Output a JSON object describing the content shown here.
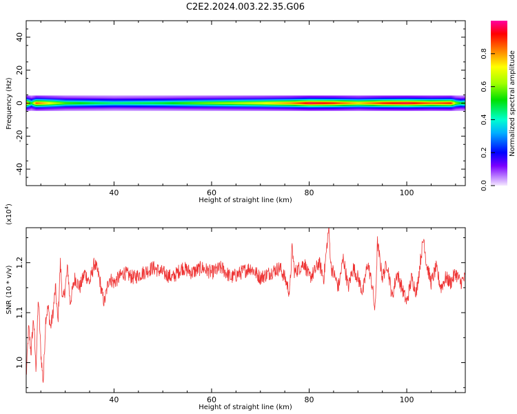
{
  "title": "C2E2.2024.003.22.35.G06",
  "chart_data": [
    {
      "type": "heatmap",
      "xlabel": "Height of straight line (km)",
      "ylabel": "Frequency (Hz)",
      "xlim": [
        22,
        112
      ],
      "ylim": [
        -50,
        50
      ],
      "x_ticks": [
        40,
        60,
        80,
        100
      ],
      "y_ticks": [
        -40,
        -20,
        0,
        20,
        40
      ],
      "colorbar": {
        "label": "Normalized spectral amplitude",
        "range": [
          0,
          1
        ],
        "ticks": [
          "0.0",
          "0.2",
          "0.4",
          "0.6",
          "0.8"
        ]
      },
      "ridge": {
        "center_hz": 0,
        "x": [
          22,
          23,
          24,
          30,
          40,
          50,
          60,
          70,
          76,
          80,
          85,
          90,
          95,
          100,
          105,
          109,
          110,
          111,
          112
        ],
        "amplitude": [
          0.85,
          0.5,
          0.85,
          0.55,
          0.45,
          0.5,
          0.6,
          0.7,
          0.8,
          0.95,
          0.9,
          0.75,
          0.9,
          0.95,
          0.85,
          0.9,
          0.6,
          0.5,
          0.55
        ]
      }
    },
    {
      "type": "line",
      "xlabel": "Height of straight line (km)",
      "ylabel": "SNR (10 * v/v)",
      "y_scale_label": "(x10",
      "y_scale_exp": "4",
      "xlim": [
        22,
        112
      ],
      "ylim": [
        0.94,
        1.27
      ],
      "x_ticks": [
        40,
        60,
        80,
        100
      ],
      "y_ticks": [
        "1.0",
        "1.1",
        "1.2"
      ],
      "color": "#ee3333",
      "series": [
        {
          "x": [
            22,
            22.5,
            23,
            23.5,
            24,
            24.5,
            25,
            25.5,
            26,
            26.5,
            27,
            27.5,
            28,
            28.5,
            29,
            29.5,
            30,
            30.5,
            31,
            32,
            33,
            34,
            35,
            36,
            37,
            37.5,
            38,
            39,
            40,
            42,
            44,
            46,
            48,
            50,
            52,
            54,
            56,
            58,
            60,
            62,
            64,
            66,
            68,
            70,
            72,
            74,
            75,
            76,
            76.5,
            77,
            78,
            79,
            80,
            81,
            82,
            83,
            84,
            84.5,
            85,
            86,
            87,
            88,
            89,
            90,
            91,
            92,
            93,
            93.5,
            94,
            95,
            96,
            97,
            98,
            99,
            100,
            101,
            102,
            103,
            103.5,
            104,
            105,
            106,
            107,
            108,
            109,
            110,
            111,
            112
          ],
          "values": [
            0.97,
            1.07,
            1.02,
            1.09,
            0.99,
            1.13,
            1.02,
            0.96,
            1.09,
            1.11,
            1.07,
            1.1,
            1.15,
            1.08,
            1.2,
            1.12,
            1.15,
            1.19,
            1.12,
            1.17,
            1.15,
            1.18,
            1.16,
            1.2,
            1.17,
            1.14,
            1.12,
            1.17,
            1.16,
            1.18,
            1.17,
            1.18,
            1.19,
            1.18,
            1.17,
            1.19,
            1.18,
            1.19,
            1.18,
            1.19,
            1.17,
            1.18,
            1.19,
            1.17,
            1.18,
            1.19,
            1.17,
            1.14,
            1.23,
            1.18,
            1.19,
            1.2,
            1.17,
            1.18,
            1.2,
            1.17,
            1.27,
            1.19,
            1.18,
            1.15,
            1.21,
            1.15,
            1.19,
            1.17,
            1.14,
            1.2,
            1.15,
            1.1,
            1.24,
            1.17,
            1.2,
            1.13,
            1.18,
            1.15,
            1.12,
            1.17,
            1.14,
            1.22,
            1.25,
            1.2,
            1.16,
            1.19,
            1.15,
            1.17,
            1.16,
            1.18,
            1.16,
            1.17
          ]
        }
      ]
    }
  ]
}
